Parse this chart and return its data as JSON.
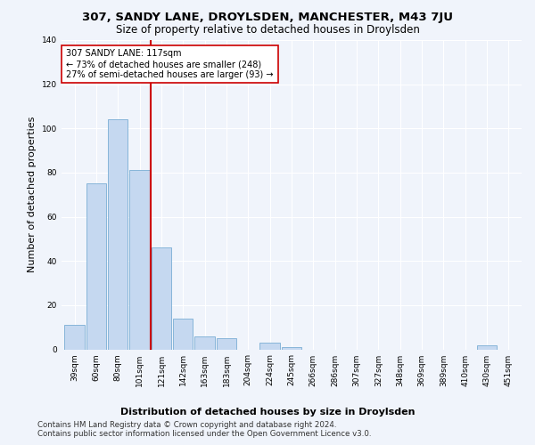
{
  "title": "307, SANDY LANE, DROYLSDEN, MANCHESTER, M43 7JU",
  "subtitle": "Size of property relative to detached houses in Droylsden",
  "xlabel_bottom": "Distribution of detached houses by size in Droylsden",
  "ylabel": "Number of detached properties",
  "categories": [
    "39sqm",
    "60sqm",
    "80sqm",
    "101sqm",
    "121sqm",
    "142sqm",
    "163sqm",
    "183sqm",
    "204sqm",
    "224sqm",
    "245sqm",
    "266sqm",
    "286sqm",
    "307sqm",
    "327sqm",
    "348sqm",
    "369sqm",
    "389sqm",
    "410sqm",
    "430sqm",
    "451sqm"
  ],
  "values": [
    11,
    75,
    104,
    81,
    46,
    14,
    6,
    5,
    0,
    3,
    1,
    0,
    0,
    0,
    0,
    0,
    0,
    0,
    0,
    2,
    0
  ],
  "bar_color": "#c5d8f0",
  "bar_edgecolor": "#7aadd4",
  "vline_color": "#cc0000",
  "annotation_text": "307 SANDY LANE: 117sqm\n← 73% of detached houses are smaller (248)\n27% of semi-detached houses are larger (93) →",
  "annotation_box_edgecolor": "#cc0000",
  "annotation_box_facecolor": "#ffffff",
  "ylim": [
    0,
    140
  ],
  "yticks": [
    0,
    20,
    40,
    60,
    80,
    100,
    120,
    140
  ],
  "footer": "Contains HM Land Registry data © Crown copyright and database right 2024.\nContains public sector information licensed under the Open Government Licence v3.0.",
  "bg_color": "#f0f4fb",
  "plot_bg_color": "#f0f4fb",
  "title_fontsize": 9.5,
  "subtitle_fontsize": 8.5,
  "tick_fontsize": 6.5,
  "ylabel_fontsize": 8,
  "annot_fontsize": 7,
  "xlabel_bottom_fontsize": 8,
  "footer_fontsize": 6.2
}
